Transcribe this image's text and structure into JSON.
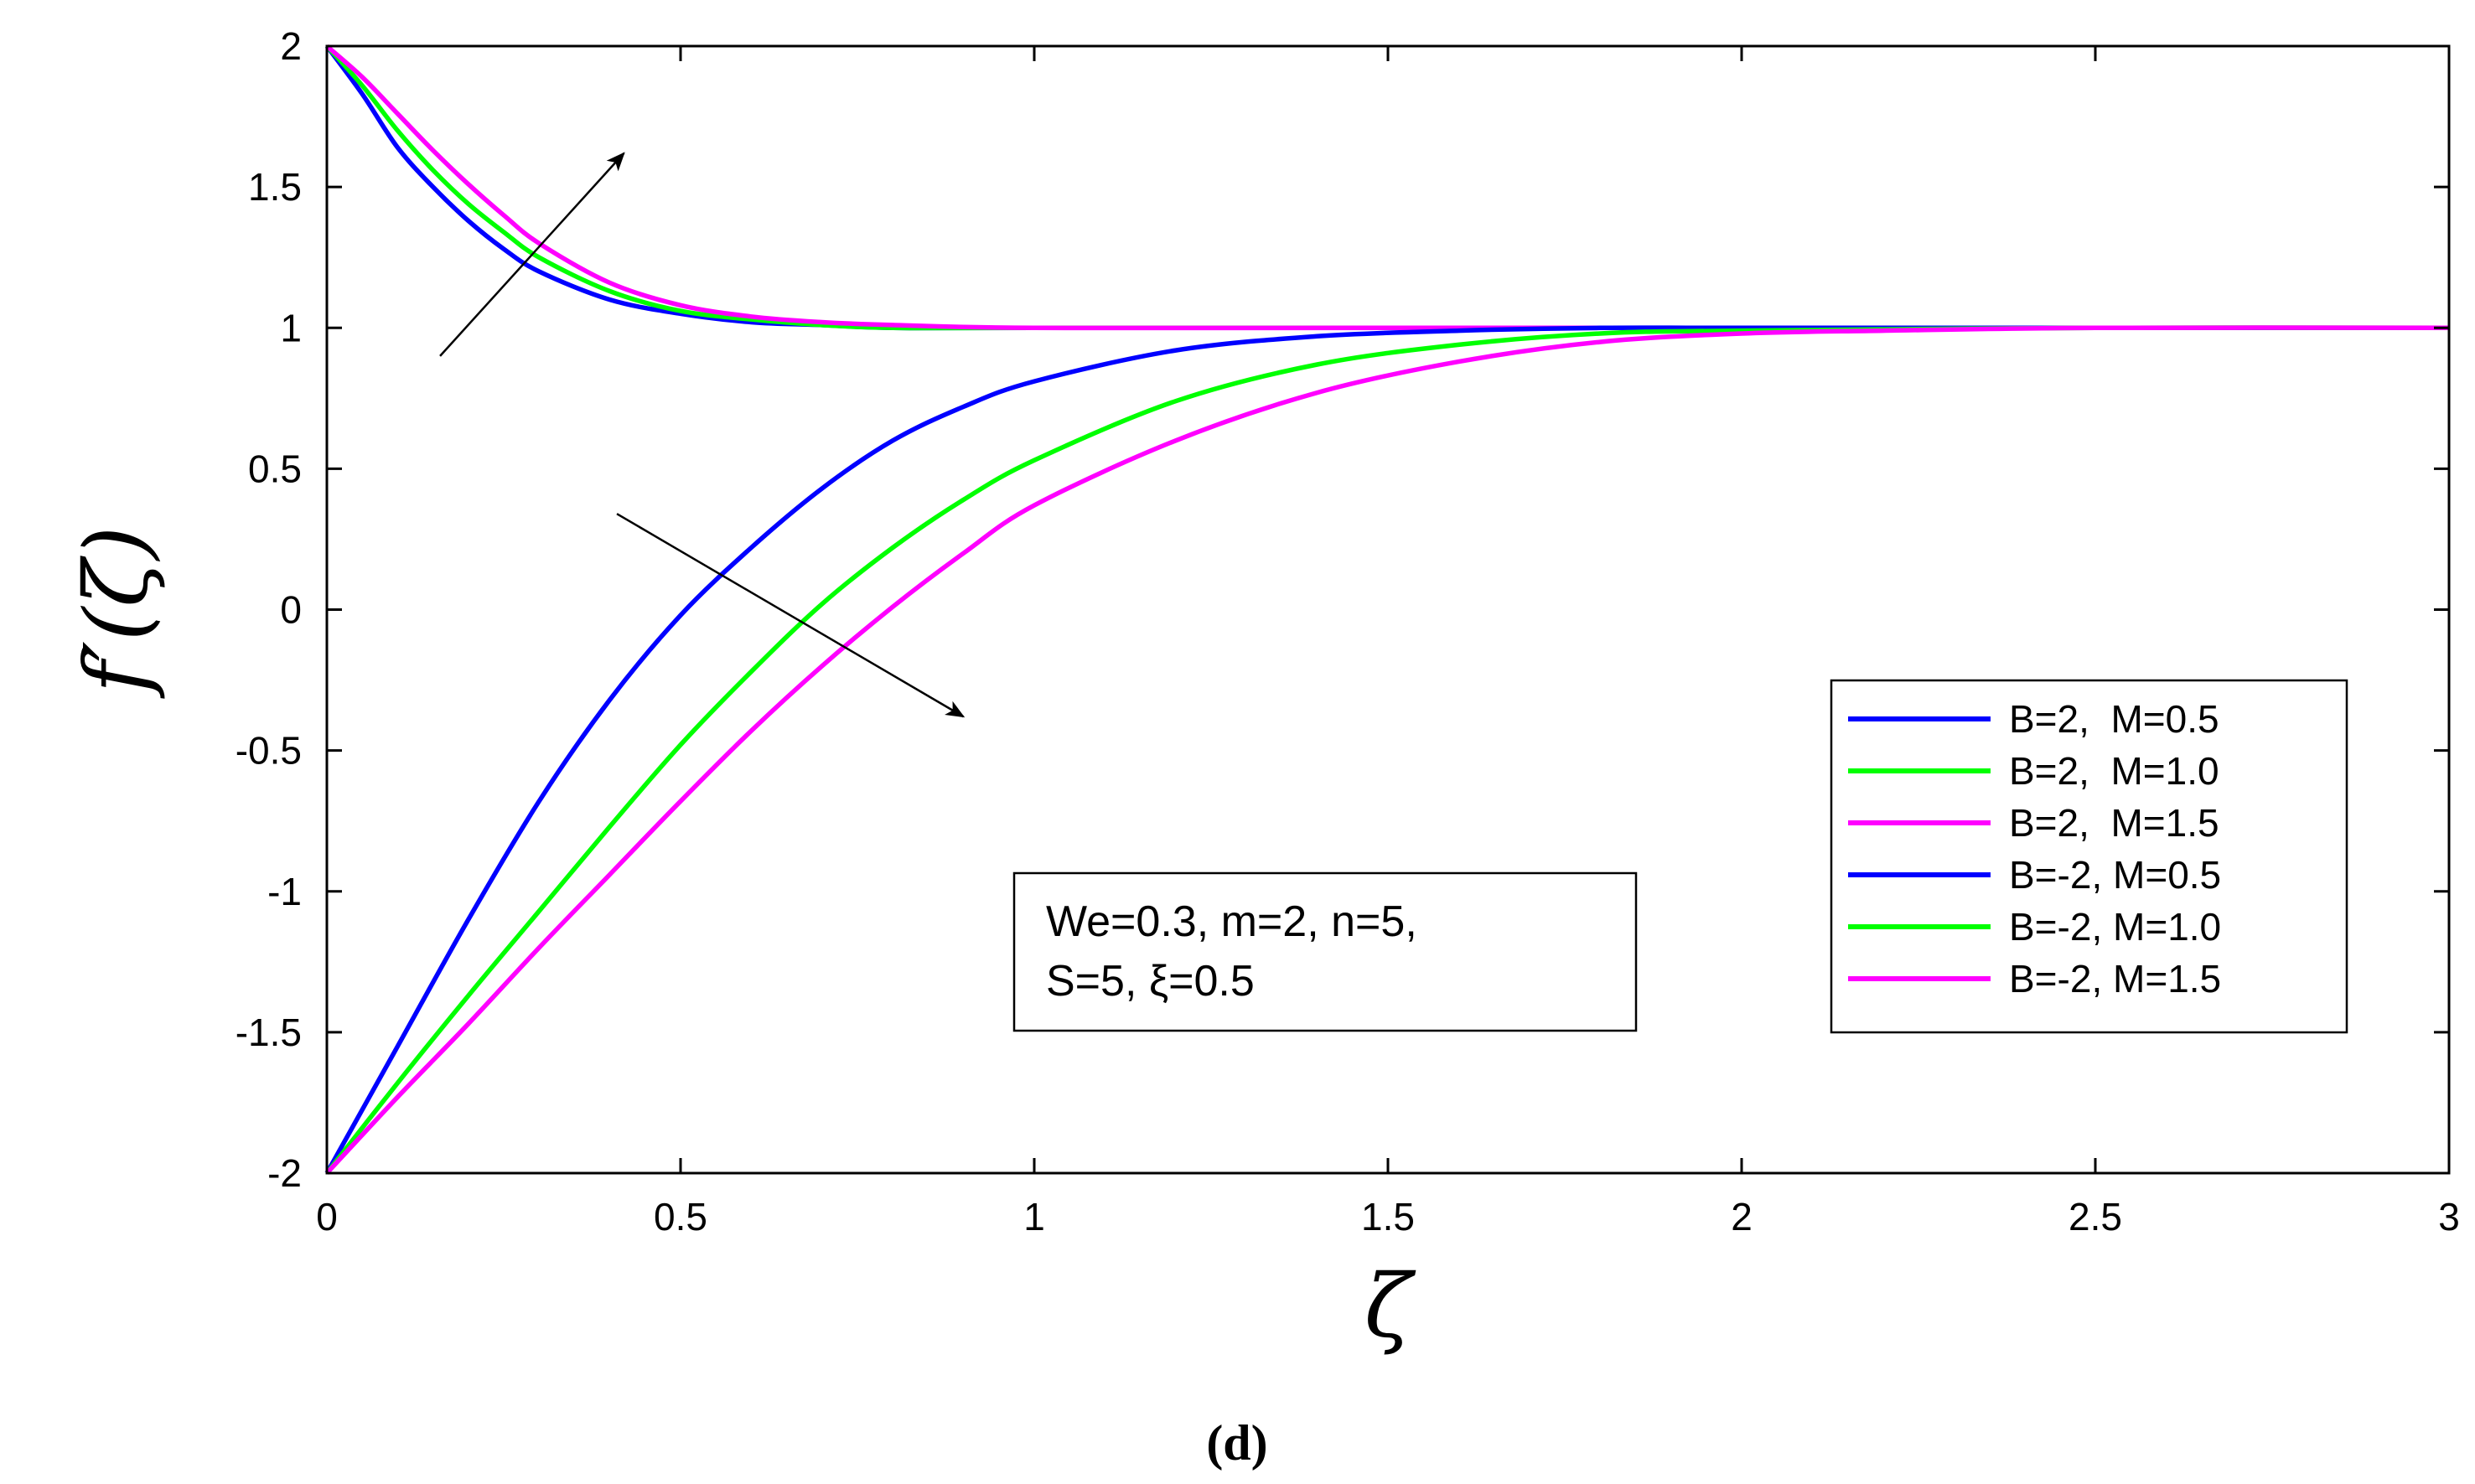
{
  "chart_data": {
    "type": "line",
    "title": "",
    "xlabel": "ζ",
    "ylabel": "f′(ζ)",
    "xlim": [
      0,
      3
    ],
    "ylim": [
      -2,
      2
    ],
    "xticks": [
      0,
      0.5,
      1,
      1.5,
      2,
      2.5,
      3
    ],
    "xtick_labels": [
      "0",
      "0.5",
      "1",
      "1.5",
      "2",
      "2.5",
      "3"
    ],
    "yticks": [
      2,
      1.5,
      1,
      0.5,
      0,
      -0.5,
      -1,
      -1.5,
      -2
    ],
    "ytick_labels": [
      "2",
      "1.5",
      "1",
      "0.5",
      "0",
      "-0.5",
      "-1",
      "-1.5",
      "-2"
    ],
    "grid": false,
    "legend_position": "lower-right",
    "series": [
      {
        "name": "B=2,  M=0.5",
        "color": "#0000ff",
        "x": [
          0,
          0.05,
          0.1,
          0.15,
          0.2,
          0.25,
          0.3,
          0.4,
          0.5,
          0.6,
          0.7,
          0.8,
          1.0,
          1.5,
          2.0,
          2.5,
          3.0
        ],
        "y": [
          2.0,
          1.83,
          1.64,
          1.5,
          1.38,
          1.28,
          1.2,
          1.1,
          1.05,
          1.02,
          1.01,
          1.0,
          1.0,
          1.0,
          1.0,
          1.0,
          1.0
        ]
      },
      {
        "name": "B=2,  M=1.0",
        "color": "#00ff00",
        "x": [
          0,
          0.05,
          0.1,
          0.15,
          0.2,
          0.25,
          0.3,
          0.4,
          0.5,
          0.6,
          0.7,
          0.8,
          1.0,
          1.5,
          2.0,
          2.5,
          3.0
        ],
        "y": [
          2.0,
          1.86,
          1.7,
          1.56,
          1.44,
          1.34,
          1.25,
          1.13,
          1.06,
          1.03,
          1.01,
          1.0,
          1.0,
          1.0,
          1.0,
          1.0,
          1.0
        ]
      },
      {
        "name": "B=2,  M=1.5",
        "color": "#ff00ff",
        "x": [
          0,
          0.05,
          0.1,
          0.15,
          0.2,
          0.25,
          0.3,
          0.4,
          0.5,
          0.6,
          0.7,
          0.8,
          1.0,
          1.5,
          2.0,
          2.5,
          3.0
        ],
        "y": [
          2.0,
          1.89,
          1.76,
          1.63,
          1.51,
          1.4,
          1.3,
          1.16,
          1.08,
          1.04,
          1.02,
          1.01,
          1.0,
          1.0,
          1.0,
          1.0,
          1.0
        ]
      },
      {
        "name": "B=-2, M=0.5",
        "color": "#0000ff",
        "x": [
          0,
          0.1,
          0.2,
          0.3,
          0.4,
          0.5,
          0.6,
          0.7,
          0.8,
          0.9,
          1.0,
          1.2,
          1.4,
          1.6,
          1.8,
          2.0,
          2.5,
          3.0
        ],
        "y": [
          -2.0,
          -1.55,
          -1.1,
          -0.68,
          -0.32,
          -0.02,
          0.22,
          0.43,
          0.6,
          0.72,
          0.81,
          0.92,
          0.97,
          0.99,
          1.0,
          1.0,
          1.0,
          1.0
        ]
      },
      {
        "name": "B=-2, M=1.0",
        "color": "#00ff00",
        "x": [
          0,
          0.1,
          0.2,
          0.3,
          0.4,
          0.5,
          0.6,
          0.7,
          0.8,
          0.9,
          1.0,
          1.2,
          1.4,
          1.6,
          1.8,
          2.0,
          2.5,
          3.0
        ],
        "y": [
          -2.0,
          -1.68,
          -1.37,
          -1.07,
          -0.77,
          -0.48,
          -0.22,
          0.02,
          0.22,
          0.39,
          0.53,
          0.74,
          0.87,
          0.94,
          0.98,
          0.99,
          1.0,
          1.0
        ]
      },
      {
        "name": "B=-2, M=1.5",
        "color": "#ff00ff",
        "x": [
          0,
          0.1,
          0.2,
          0.3,
          0.4,
          0.5,
          0.6,
          0.7,
          0.8,
          0.9,
          1.0,
          1.2,
          1.4,
          1.6,
          1.8,
          2.0,
          2.2,
          2.5,
          3.0
        ],
        "y": [
          -2.0,
          -1.73,
          -1.47,
          -1.2,
          -0.94,
          -0.68,
          -0.43,
          -0.2,
          0.01,
          0.2,
          0.37,
          0.6,
          0.77,
          0.88,
          0.95,
          0.98,
          0.99,
          1.0,
          1.0
        ]
      }
    ],
    "annotation": {
      "line1": "We=0.3, m=2, n=5,",
      "line2": "S=5, ξ=0.5"
    },
    "arrows": [
      {
        "from": [
          0.16,
          0.9
        ],
        "to": [
          0.42,
          1.62
        ]
      },
      {
        "from": [
          0.41,
          0.34
        ],
        "to": [
          0.9,
          -0.38
        ]
      }
    ],
    "caption": "(d)"
  }
}
